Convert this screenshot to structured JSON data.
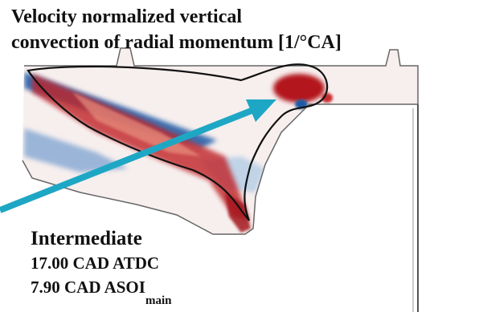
{
  "title": {
    "line1": "Velocity normalized vertical",
    "line2": "convection of radial momentum [1/°CA]"
  },
  "case": {
    "name": "Intermediate",
    "time": "17.00 CAD ATDC",
    "soi_value": "7.90 CAD ASOI",
    "soi_subscript": "main"
  },
  "colors": {
    "arrow": "#1ea7c4",
    "positive": "#b3171d",
    "negative": "#1c5aa6",
    "outline": "#111111"
  }
}
